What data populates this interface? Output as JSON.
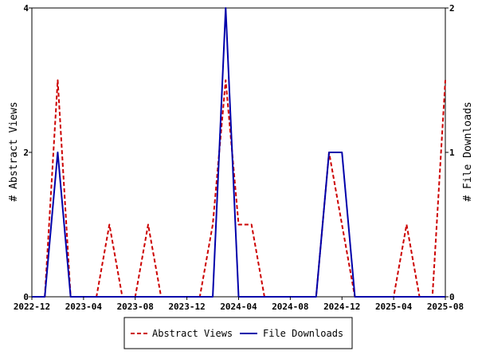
{
  "chart_data": {
    "type": "line",
    "x_labels": [
      "2022-12",
      "2023-01",
      "2023-02",
      "2023-03",
      "2023-04",
      "2023-05",
      "2023-06",
      "2023-07",
      "2023-08",
      "2023-09",
      "2023-10",
      "2023-11",
      "2023-12",
      "2024-01",
      "2024-02",
      "2024-03",
      "2024-04",
      "2024-05",
      "2024-06",
      "2024-07",
      "2024-08",
      "2024-09",
      "2024-10",
      "2024-11",
      "2024-12",
      "2025-01",
      "2025-02",
      "2025-03",
      "2025-04",
      "2025-05",
      "2025-06",
      "2025-07",
      "2025-08"
    ],
    "x_tick_labels": [
      "2022-12",
      "2023-04",
      "2023-08",
      "2023-12",
      "2024-04",
      "2024-08",
      "2024-12",
      "2025-04",
      "2025-08"
    ],
    "y_left": {
      "label": "# Abstract Views",
      "range": [
        0,
        4
      ],
      "ticks": [
        "0",
        "2",
        "4"
      ]
    },
    "y_right": {
      "label": "# File Downloads",
      "range": [
        0,
        2
      ],
      "ticks": [
        "0",
        "1",
        "2"
      ]
    },
    "series": [
      {
        "name": "Abstract Views",
        "axis": "left",
        "color": "#cc0000",
        "style": "dashed",
        "values": [
          0,
          0,
          3,
          0,
          0,
          0,
          1,
          0,
          0,
          1,
          0,
          0,
          0,
          0,
          1,
          3,
          1,
          1,
          0,
          0,
          0,
          0,
          0,
          2,
          1,
          0,
          0,
          0,
          0,
          1,
          0,
          0,
          3
        ]
      },
      {
        "name": "File Downloads",
        "axis": "right",
        "color": "#0000aa",
        "style": "solid",
        "values": [
          0,
          0,
          1,
          0,
          0,
          0,
          0,
          0,
          0,
          0,
          0,
          0,
          0,
          0,
          0,
          2,
          0,
          0,
          0,
          0,
          0,
          0,
          0,
          1,
          1,
          0,
          0,
          0,
          0,
          0,
          0,
          0,
          0
        ]
      }
    ],
    "grid": false,
    "legend_position": "bottom"
  }
}
